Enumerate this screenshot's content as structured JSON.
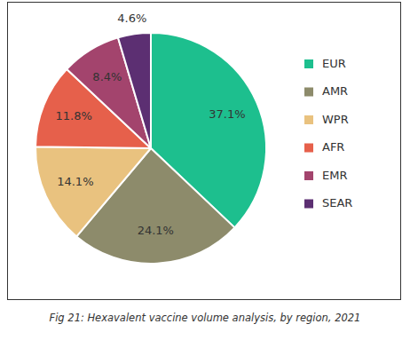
{
  "chart_data": {
    "type": "pie",
    "title": "Fig 21: Hexavalent vaccine volume analysis, by region, 2021",
    "categories": [
      "EUR",
      "AMR",
      "WPR",
      "AFR",
      "EMR",
      "SEAR"
    ],
    "values": [
      37.1,
      24.1,
      14.1,
      11.8,
      8.4,
      4.6
    ],
    "value_labels": [
      "37.1%",
      "24.1%",
      "14.1%",
      "11.8%",
      "8.4%",
      "4.6%"
    ],
    "colors": [
      "#1dbf8e",
      "#8d8b6b",
      "#e9c27f",
      "#e6604b",
      "#a3446d",
      "#5c2f72"
    ],
    "data_labels": true,
    "legend": "right"
  }
}
